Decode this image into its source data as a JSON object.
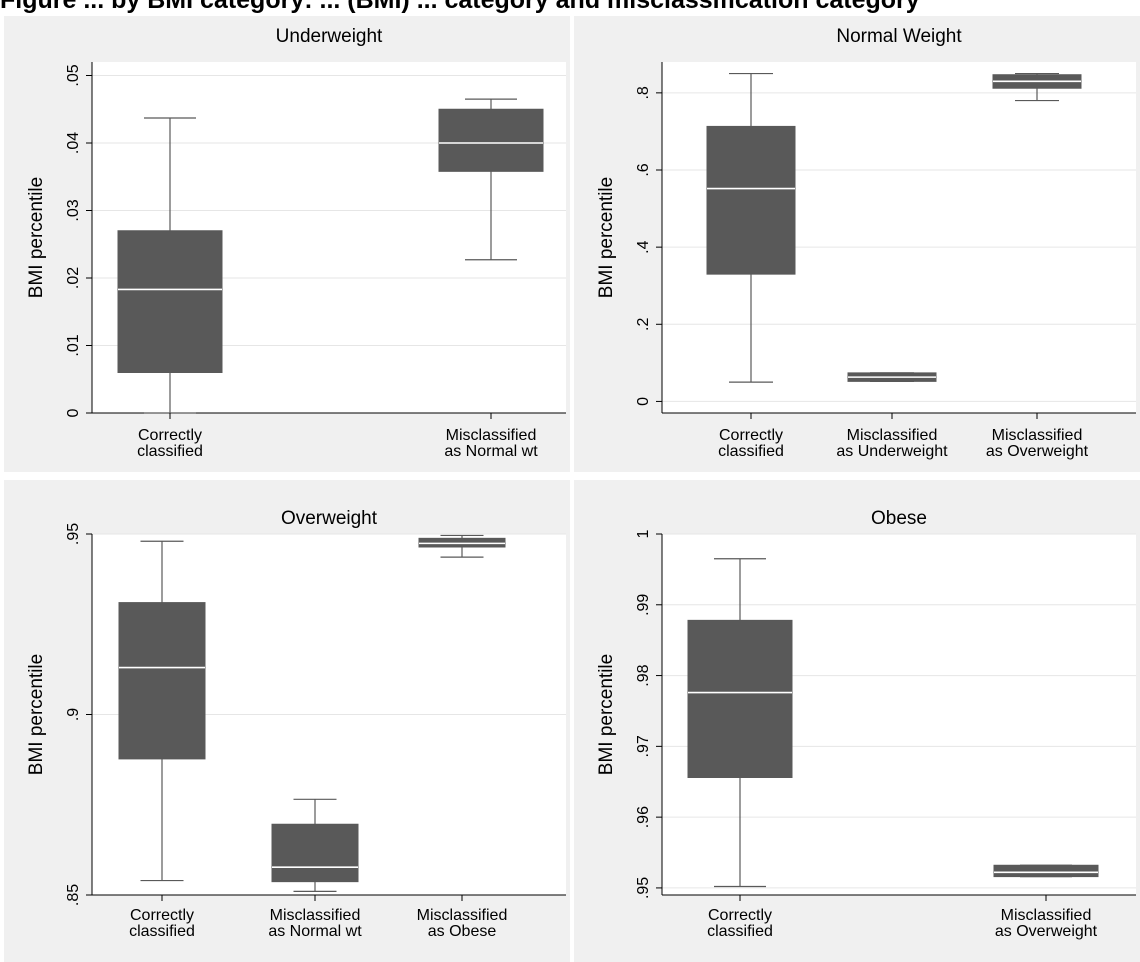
{
  "page": {
    "title_fragment": "Figure ... by BMI category: ... (BMI) ... category and misclassification category"
  },
  "chart_data": [
    {
      "type": "box",
      "title": "Underweight",
      "ylabel": "BMI percentile",
      "ylim": [
        0,
        0.052
      ],
      "yticks": [
        0,
        0.01,
        0.02,
        0.03,
        0.04,
        0.05
      ],
      "yticklabels": [
        "0",
        ".01",
        ".02",
        ".03",
        ".04",
        ".05"
      ],
      "categories": [
        [
          "Correctly",
          "classified"
        ],
        [
          "Misclassified",
          "as Normal wt"
        ]
      ],
      "boxes": [
        {
          "min": 0.0,
          "q1": 0.006,
          "median": 0.0183,
          "q3": 0.027,
          "max": 0.0437
        },
        {
          "min": 0.0227,
          "q1": 0.0358,
          "median": 0.04,
          "q3": 0.045,
          "max": 0.0465
        }
      ],
      "grid": true
    },
    {
      "type": "box",
      "title": "Normal Weight",
      "ylabel": "BMI percentile",
      "ylim": [
        -0.03,
        0.88
      ],
      "yticks": [
        0,
        0.2,
        0.4,
        0.6,
        0.8
      ],
      "yticklabels": [
        "0",
        ".2",
        ".4",
        ".6",
        ".8"
      ],
      "categories": [
        [
          "Correctly",
          "classified"
        ],
        [
          "Misclassified",
          "as Underweight"
        ],
        [
          "Misclassified",
          "as Overweight"
        ]
      ],
      "boxes": [
        {
          "min": 0.05,
          "q1": 0.33,
          "median": 0.552,
          "q3": 0.713,
          "max": 0.85
        },
        {
          "min": 0.052,
          "q1": 0.052,
          "median": 0.063,
          "q3": 0.074,
          "max": 0.074
        },
        {
          "min": 0.78,
          "q1": 0.812,
          "median": 0.83,
          "q3": 0.847,
          "max": 0.85
        }
      ],
      "grid": true
    },
    {
      "type": "box",
      "title": "Overweight",
      "ylabel": "BMI percentile",
      "ylim": [
        0.85,
        0.95
      ],
      "yticks": [
        0.85,
        0.9,
        0.95
      ],
      "yticklabels": [
        ".85",
        ".9",
        ".95"
      ],
      "categories": [
        [
          "Correctly",
          "classified"
        ],
        [
          "Misclassified",
          "as Normal wt"
        ],
        [
          "Misclassified",
          "as Obese"
        ]
      ],
      "boxes": [
        {
          "min": 0.854,
          "q1": 0.8877,
          "median": 0.913,
          "q3": 0.931,
          "max": 0.948
        },
        {
          "min": 0.851,
          "q1": 0.8537,
          "median": 0.8577,
          "q3": 0.8696,
          "max": 0.8765
        },
        {
          "min": 0.9436,
          "q1": 0.9464,
          "median": 0.9474,
          "q3": 0.9488,
          "max": 0.9496
        }
      ],
      "grid": true
    },
    {
      "type": "box",
      "title": "Obese",
      "ylabel": "BMI percentile",
      "ylim": [
        0.949,
        1.0
      ],
      "yticks": [
        0.95,
        0.96,
        0.97,
        0.98,
        0.99,
        1
      ],
      "yticklabels": [
        ".95",
        ".96",
        ".97",
        ".98",
        ".99",
        "1"
      ],
      "categories": [
        [
          "Correctly",
          "classified"
        ],
        [
          "Misclassified",
          "as Overweight"
        ]
      ],
      "boxes": [
        {
          "min": 0.9502,
          "q1": 0.9656,
          "median": 0.9776,
          "q3": 0.9878,
          "max": 0.9965
        },
        {
          "min": 0.9516,
          "q1": 0.9516,
          "median": 0.9522,
          "q3": 0.9532,
          "max": 0.9532
        }
      ],
      "grid": true
    }
  ]
}
